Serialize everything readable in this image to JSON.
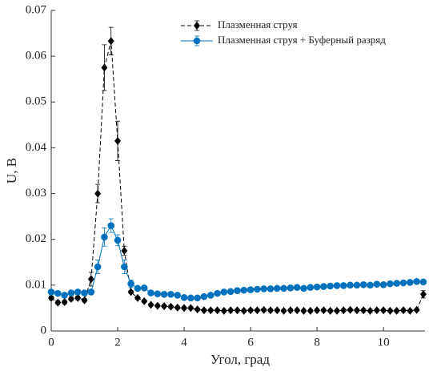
{
  "chart_data": {
    "type": "line",
    "x_label": "Угол, град",
    "y_label": "U, В",
    "x": [
      0,
      0.2,
      0.4,
      0.6,
      0.8,
      1.0,
      1.2,
      1.4,
      1.6,
      1.8,
      2.0,
      2.2,
      2.4,
      2.6,
      2.8,
      3.0,
      3.2,
      3.4,
      3.6,
      3.8,
      4.0,
      4.2,
      4.4,
      4.6,
      4.8,
      5.0,
      5.2,
      5.4,
      5.6,
      5.8,
      6.0,
      6.2,
      6.4,
      6.6,
      6.8,
      7.0,
      7.2,
      7.4,
      7.6,
      7.8,
      8.0,
      8.2,
      8.4,
      8.6,
      8.8,
      9.0,
      9.2,
      9.4,
      9.6,
      9.8,
      10.0,
      10.2,
      10.4,
      10.6,
      10.8,
      11.0,
      11.2
    ],
    "series": [
      {
        "name": "Плазменная струя",
        "color": "#000000",
        "marker": "diamond",
        "dashed": true,
        "values": [
          0.0072,
          0.0062,
          0.0063,
          0.007,
          0.0072,
          0.0067,
          0.0113,
          0.03,
          0.0575,
          0.0633,
          0.0415,
          0.0175,
          0.0085,
          0.0072,
          0.0065,
          0.0057,
          0.0055,
          0.0054,
          0.0053,
          0.0051,
          0.005,
          0.005,
          0.0047,
          0.0045,
          0.0045,
          0.0045,
          0.0044,
          0.0045,
          0.0045,
          0.0044,
          0.0045,
          0.0045,
          0.0046,
          0.0045,
          0.0045,
          0.0044,
          0.0045,
          0.0045,
          0.0044,
          0.0044,
          0.0045,
          0.0045,
          0.0044,
          0.0044,
          0.0045,
          0.0046,
          0.0045,
          0.0045,
          0.0044,
          0.0045,
          0.0045,
          0.0044,
          0.0044,
          0.0045,
          0.0044,
          0.0046,
          0.008
        ],
        "errors": [
          0.0004,
          0.0004,
          0.0004,
          0.0004,
          0.0004,
          0.0004,
          0.0015,
          0.002,
          0.005,
          0.003,
          0.0043,
          0.001,
          0.0003,
          0.0003,
          0.0003,
          0.0003,
          0.0003,
          0.0003,
          0.0003,
          0.0003,
          0.0003,
          0.0003,
          0.0003,
          0.0003,
          0.0003,
          0.0003,
          0.0003,
          0.0003,
          0.0003,
          0.0003,
          0.0003,
          0.0003,
          0.0003,
          0.0003,
          0.0003,
          0.0003,
          0.0003,
          0.0003,
          0.0003,
          0.0003,
          0.0003,
          0.0003,
          0.0003,
          0.0003,
          0.0003,
          0.0003,
          0.0003,
          0.0003,
          0.0003,
          0.0003,
          0.0003,
          0.0003,
          0.0003,
          0.0003,
          0.0003,
          0.0003,
          0.0008
        ]
      },
      {
        "name": "Плазменная струя + Буферный разряд",
        "color": "#0072bd",
        "marker": "circle",
        "dashed": false,
        "values": [
          0.0085,
          0.0082,
          0.0078,
          0.0083,
          0.0085,
          0.0083,
          0.0085,
          0.014,
          0.0205,
          0.023,
          0.0198,
          0.014,
          0.0103,
          0.0093,
          0.0094,
          0.0083,
          0.0081,
          0.008,
          0.008,
          0.0078,
          0.0073,
          0.0072,
          0.0072,
          0.0075,
          0.0078,
          0.0082,
          0.0085,
          0.0086,
          0.0088,
          0.0089,
          0.009,
          0.0091,
          0.0092,
          0.0092,
          0.0093,
          0.0093,
          0.0094,
          0.0095,
          0.0093,
          0.0095,
          0.0096,
          0.0097,
          0.0098,
          0.0099,
          0.0099,
          0.01,
          0.01,
          0.0101,
          0.01,
          0.0102,
          0.0101,
          0.0103,
          0.0104,
          0.0105,
          0.0106,
          0.0108,
          0.0107
        ],
        "errors": [
          0.0004,
          0.0004,
          0.0004,
          0.0004,
          0.0004,
          0.0004,
          0.0004,
          0.0015,
          0.002,
          0.0015,
          0.0012,
          0.0015,
          0.0008,
          0.0003,
          0.0003,
          0.0003,
          0.0003,
          0.0003,
          0.0003,
          0.0003,
          0.0003,
          0.0003,
          0.0003,
          0.0003,
          0.0003,
          0.0003,
          0.0003,
          0.0003,
          0.0003,
          0.0003,
          0.0003,
          0.0003,
          0.0003,
          0.0003,
          0.0003,
          0.0003,
          0.0003,
          0.0003,
          0.0003,
          0.0003,
          0.0003,
          0.0003,
          0.0003,
          0.0003,
          0.0003,
          0.0003,
          0.0003,
          0.0003,
          0.0003,
          0.0003,
          0.0003,
          0.0003,
          0.0003,
          0.0003,
          0.0003,
          0.0003,
          0.0003
        ]
      }
    ],
    "xlim": [
      0,
      11.25
    ],
    "ylim": [
      0,
      0.07
    ],
    "xticks": [
      0,
      2,
      4,
      6,
      8,
      10
    ],
    "yticks": [
      0,
      0.01,
      0.02,
      0.03,
      0.04,
      0.05,
      0.06,
      0.07
    ],
    "legend": "upper-right",
    "grid": false
  }
}
